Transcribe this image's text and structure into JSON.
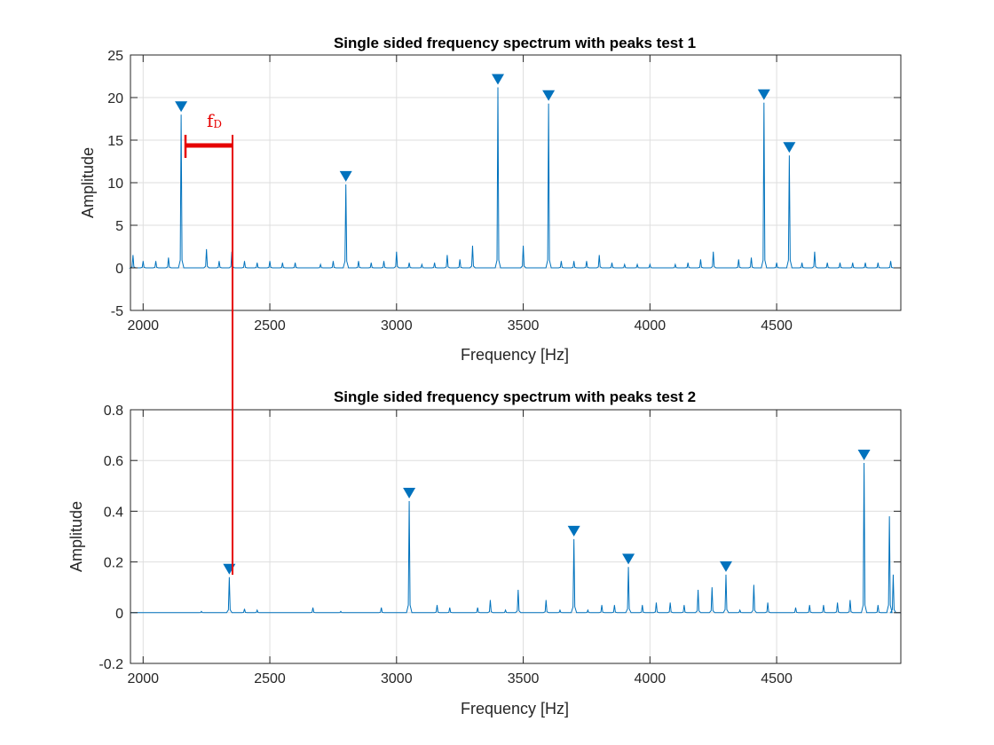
{
  "annotation": {
    "label": "f",
    "subscript": "D",
    "color": "#e60000"
  },
  "colors": {
    "series": "#0072BD",
    "marker": "#0072BD",
    "grid": "#dedede",
    "axis": "#262626"
  },
  "chart_data": [
    {
      "type": "line",
      "title": "Single sided frequency spectrum with peaks test 1",
      "xlabel": "Frequency [Hz]",
      "ylabel": "Amplitude",
      "xlim": [
        1950,
        4990
      ],
      "ylim": [
        -5,
        25
      ],
      "xticks": [
        2000,
        2500,
        3000,
        3500,
        4000,
        4500
      ],
      "yticks": [
        -5,
        0,
        5,
        10,
        15,
        20,
        25
      ],
      "grid": true,
      "peaks": [
        {
          "x": 2150,
          "y": 18.0
        },
        {
          "x": 2800,
          "y": 9.8
        },
        {
          "x": 3400,
          "y": 21.2
        },
        {
          "x": 3600,
          "y": 19.3
        },
        {
          "x": 4450,
          "y": 19.4
        },
        {
          "x": 4550,
          "y": 13.2
        }
      ],
      "spikes": [
        [
          1960,
          1.5
        ],
        [
          2000,
          0.8
        ],
        [
          2050,
          0.8
        ],
        [
          2100,
          1.2
        ],
        [
          2150,
          18.0
        ],
        [
          2250,
          2.2
        ],
        [
          2300,
          0.8
        ],
        [
          2350,
          1.9
        ],
        [
          2400,
          0.8
        ],
        [
          2450,
          0.6
        ],
        [
          2500,
          0.8
        ],
        [
          2550,
          0.6
        ],
        [
          2600,
          0.6
        ],
        [
          2700,
          0.4
        ],
        [
          2750,
          0.8
        ],
        [
          2800,
          9.8
        ],
        [
          2850,
          0.8
        ],
        [
          2900,
          0.6
        ],
        [
          2950,
          0.8
        ],
        [
          3000,
          1.9
        ],
        [
          3050,
          0.6
        ],
        [
          3100,
          0.4
        ],
        [
          3150,
          0.6
        ],
        [
          3200,
          1.5
        ],
        [
          3250,
          1.0
        ],
        [
          3300,
          2.6
        ],
        [
          3400,
          21.2
        ],
        [
          3500,
          2.6
        ],
        [
          3600,
          19.3
        ],
        [
          3650,
          0.8
        ],
        [
          3700,
          0.8
        ],
        [
          3750,
          0.8
        ],
        [
          3800,
          1.5
        ],
        [
          3850,
          0.6
        ],
        [
          3900,
          0.4
        ],
        [
          3950,
          0.4
        ],
        [
          4000,
          0.4
        ],
        [
          4100,
          0.4
        ],
        [
          4150,
          0.6
        ],
        [
          4200,
          1.0
        ],
        [
          4250,
          1.9
        ],
        [
          4350,
          1.0
        ],
        [
          4400,
          1.2
        ],
        [
          4450,
          19.4
        ],
        [
          4500,
          0.6
        ],
        [
          4550,
          13.2
        ],
        [
          4600,
          0.6
        ],
        [
          4650,
          1.9
        ],
        [
          4700,
          0.6
        ],
        [
          4750,
          0.6
        ],
        [
          4800,
          0.6
        ],
        [
          4850,
          0.6
        ],
        [
          4900,
          0.6
        ],
        [
          4950,
          0.8
        ]
      ]
    },
    {
      "type": "line",
      "title": "Single sided frequency spectrum with peaks test 2",
      "xlabel": "Frequency [Hz]",
      "ylabel": "Amplitude",
      "xlim": [
        1950,
        4990
      ],
      "ylim": [
        -0.2,
        0.8
      ],
      "xticks": [
        2000,
        2500,
        3000,
        3500,
        4000,
        4500
      ],
      "yticks": [
        -0.2,
        0,
        0.2,
        0.4,
        0.6,
        0.8
      ],
      "ytick_labels": [
        "-0.2",
        "0",
        "0.2",
        "0.4",
        "0.6",
        "0.8"
      ],
      "grid": true,
      "peaks": [
        {
          "x": 2340,
          "y": 0.14
        },
        {
          "x": 3050,
          "y": 0.44
        },
        {
          "x": 3700,
          "y": 0.29
        },
        {
          "x": 3915,
          "y": 0.18
        },
        {
          "x": 4300,
          "y": 0.15
        },
        {
          "x": 4845,
          "y": 0.59
        }
      ],
      "spikes": [
        [
          2230,
          0.005
        ],
        [
          2340,
          0.14
        ],
        [
          2400,
          0.015
        ],
        [
          2450,
          0.01
        ],
        [
          2670,
          0.02
        ],
        [
          2780,
          0.005
        ],
        [
          2940,
          0.02
        ],
        [
          3050,
          0.44
        ],
        [
          3160,
          0.03
        ],
        [
          3210,
          0.02
        ],
        [
          3320,
          0.02
        ],
        [
          3370,
          0.05
        ],
        [
          3430,
          0.01
        ],
        [
          3480,
          0.09
        ],
        [
          3590,
          0.05
        ],
        [
          3645,
          0.01
        ],
        [
          3700,
          0.29
        ],
        [
          3755,
          0.01
        ],
        [
          3810,
          0.03
        ],
        [
          3860,
          0.03
        ],
        [
          3915,
          0.18
        ],
        [
          3970,
          0.03
        ],
        [
          4025,
          0.04
        ],
        [
          4080,
          0.04
        ],
        [
          4135,
          0.03
        ],
        [
          4190,
          0.09
        ],
        [
          4245,
          0.1
        ],
        [
          4300,
          0.15
        ],
        [
          4355,
          0.01
        ],
        [
          4410,
          0.11
        ],
        [
          4465,
          0.04
        ],
        [
          4575,
          0.02
        ],
        [
          4630,
          0.03
        ],
        [
          4685,
          0.03
        ],
        [
          4740,
          0.04
        ],
        [
          4790,
          0.05
        ],
        [
          4845,
          0.59
        ],
        [
          4900,
          0.03
        ],
        [
          4945,
          0.38
        ],
        [
          4960,
          0.15
        ]
      ]
    }
  ]
}
